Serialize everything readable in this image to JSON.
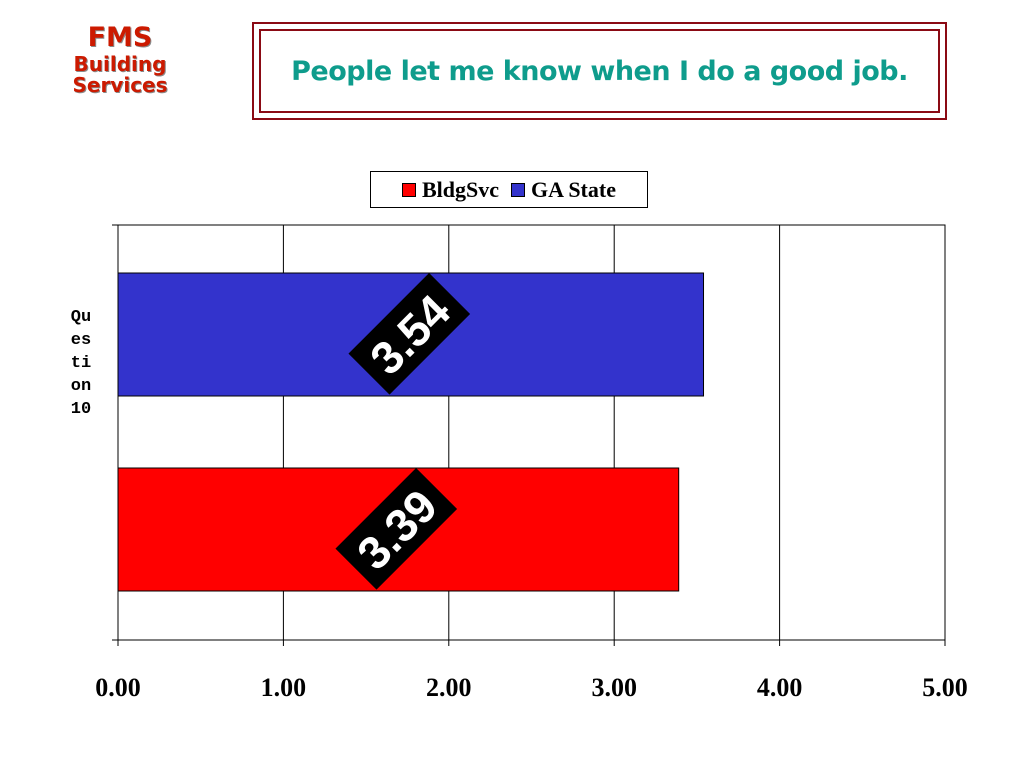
{
  "logo": {
    "line1": "FMS",
    "line2": "Building",
    "line3": "Services"
  },
  "title": "People let me know when I do a good job.",
  "chart_data": {
    "type": "bar",
    "orientation": "horizontal",
    "categories": [
      "Question 10"
    ],
    "ylabel": "Question 10",
    "xlim": [
      0,
      5
    ],
    "xticks": [
      "0.00",
      "1.00",
      "2.00",
      "3.00",
      "4.00",
      "5.00"
    ],
    "grid": true,
    "legend_position": "top-center",
    "series": [
      {
        "name": "BldgSvc",
        "color": "#ff0000",
        "values": [
          3.39
        ],
        "labels": [
          "3.39"
        ]
      },
      {
        "name": "GA State",
        "color": "#3333cc",
        "values": [
          3.54
        ],
        "labels": [
          "3.54"
        ]
      }
    ]
  }
}
